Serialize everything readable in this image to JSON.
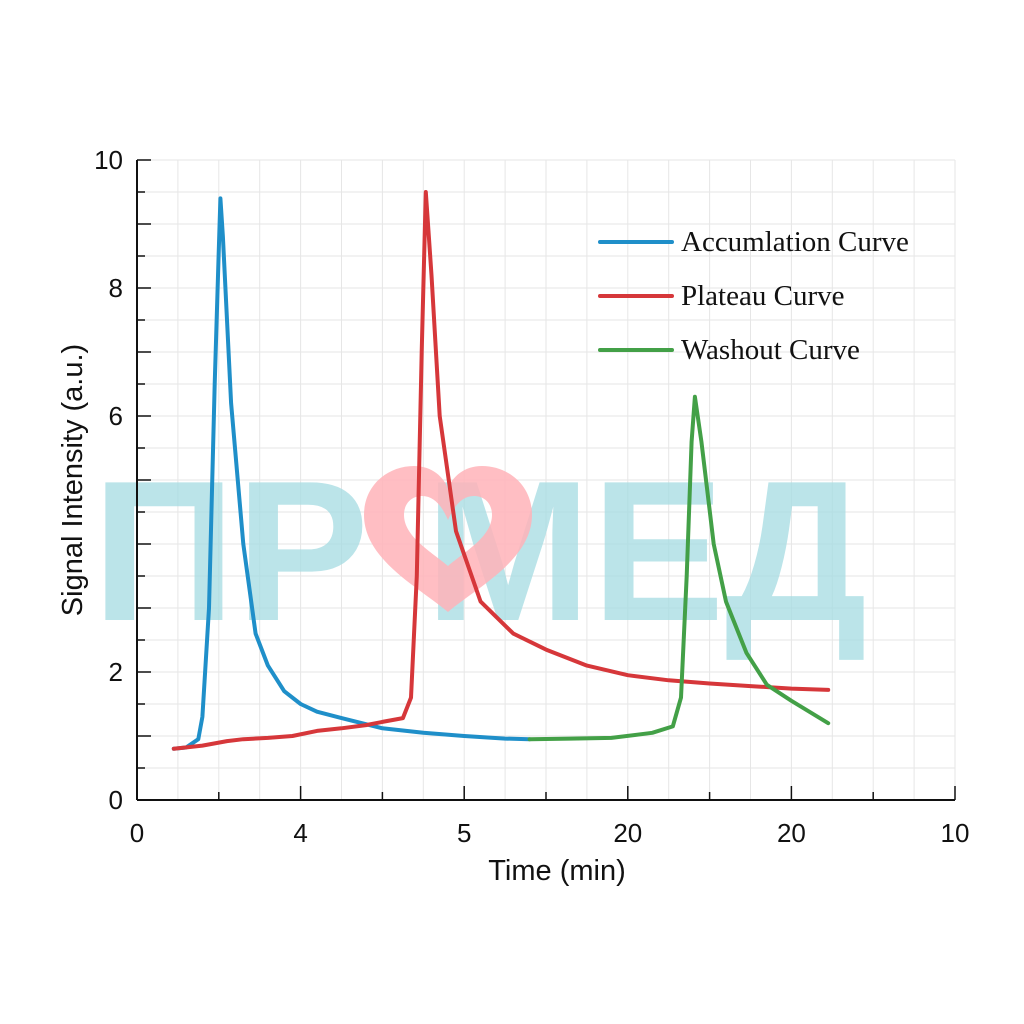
{
  "chart_data": {
    "type": "line",
    "title": "",
    "xlabel": "Time (min)",
    "ylabel": "Signal Intensity (a.u.)",
    "xlim": [
      0,
      10
    ],
    "ylim": [
      0,
      10
    ],
    "x_tick_labels": [
      "0",
      "4",
      "5",
      "20",
      "20",
      "10"
    ],
    "y_tick_labels": [
      "0",
      "2",
      "6",
      "8",
      "10"
    ],
    "y_tick_values": [
      0,
      2,
      6,
      8,
      10
    ],
    "grid": true,
    "legend_position": "top-right",
    "series": [
      {
        "name": "Accumlation Curve",
        "color": "#1f8fc9",
        "points": [
          [
            0.45,
            0.8
          ],
          [
            0.6,
            0.82
          ],
          [
            0.75,
            0.95
          ],
          [
            0.8,
            1.3
          ],
          [
            0.88,
            3.0
          ],
          [
            0.95,
            6.5
          ],
          [
            1.0,
            8.6
          ],
          [
            1.02,
            9.4
          ],
          [
            1.05,
            8.8
          ],
          [
            1.15,
            6.2
          ],
          [
            1.3,
            4.0
          ],
          [
            1.45,
            2.6
          ],
          [
            1.6,
            2.1
          ],
          [
            1.8,
            1.7
          ],
          [
            2.0,
            1.5
          ],
          [
            2.2,
            1.38
          ],
          [
            2.5,
            1.28
          ],
          [
            3.0,
            1.12
          ],
          [
            3.5,
            1.05
          ],
          [
            4.0,
            1.0
          ],
          [
            4.5,
            0.96
          ],
          [
            4.8,
            0.95
          ]
        ]
      },
      {
        "name": "Plateau Curve",
        "color": "#d6373a",
        "points": [
          [
            0.45,
            0.8
          ],
          [
            0.8,
            0.85
          ],
          [
            1.1,
            0.92
          ],
          [
            1.3,
            0.95
          ],
          [
            1.6,
            0.97
          ],
          [
            1.9,
            1.0
          ],
          [
            2.2,
            1.08
          ],
          [
            2.5,
            1.12
          ],
          [
            2.8,
            1.17
          ],
          [
            3.0,
            1.22
          ],
          [
            3.25,
            1.28
          ],
          [
            3.35,
            1.6
          ],
          [
            3.42,
            3.5
          ],
          [
            3.48,
            7.0
          ],
          [
            3.53,
            9.5
          ],
          [
            3.6,
            8.2
          ],
          [
            3.7,
            6.0
          ],
          [
            3.9,
            4.2
          ],
          [
            4.2,
            3.1
          ],
          [
            4.6,
            2.6
          ],
          [
            5.0,
            2.35
          ],
          [
            5.5,
            2.1
          ],
          [
            6.0,
            1.95
          ],
          [
            6.5,
            1.87
          ],
          [
            7.0,
            1.82
          ],
          [
            7.5,
            1.78
          ],
          [
            8.0,
            1.74
          ],
          [
            8.45,
            1.72
          ]
        ]
      },
      {
        "name": "Washout Curve",
        "color": "#43a047",
        "points": [
          [
            4.8,
            0.95
          ],
          [
            5.3,
            0.96
          ],
          [
            5.8,
            0.97
          ],
          [
            6.3,
            1.05
          ],
          [
            6.55,
            1.15
          ],
          [
            6.65,
            1.6
          ],
          [
            6.72,
            3.5
          ],
          [
            6.78,
            5.6
          ],
          [
            6.82,
            6.3
          ],
          [
            6.9,
            5.6
          ],
          [
            7.05,
            4.0
          ],
          [
            7.2,
            3.1
          ],
          [
            7.45,
            2.3
          ],
          [
            7.7,
            1.8
          ],
          [
            8.0,
            1.55
          ],
          [
            8.45,
            1.2
          ]
        ]
      }
    ]
  },
  "watermark": {
    "text": "ПР    МЕД",
    "text_color": "#a8dde3",
    "heart_color": "#ffb3b8"
  }
}
